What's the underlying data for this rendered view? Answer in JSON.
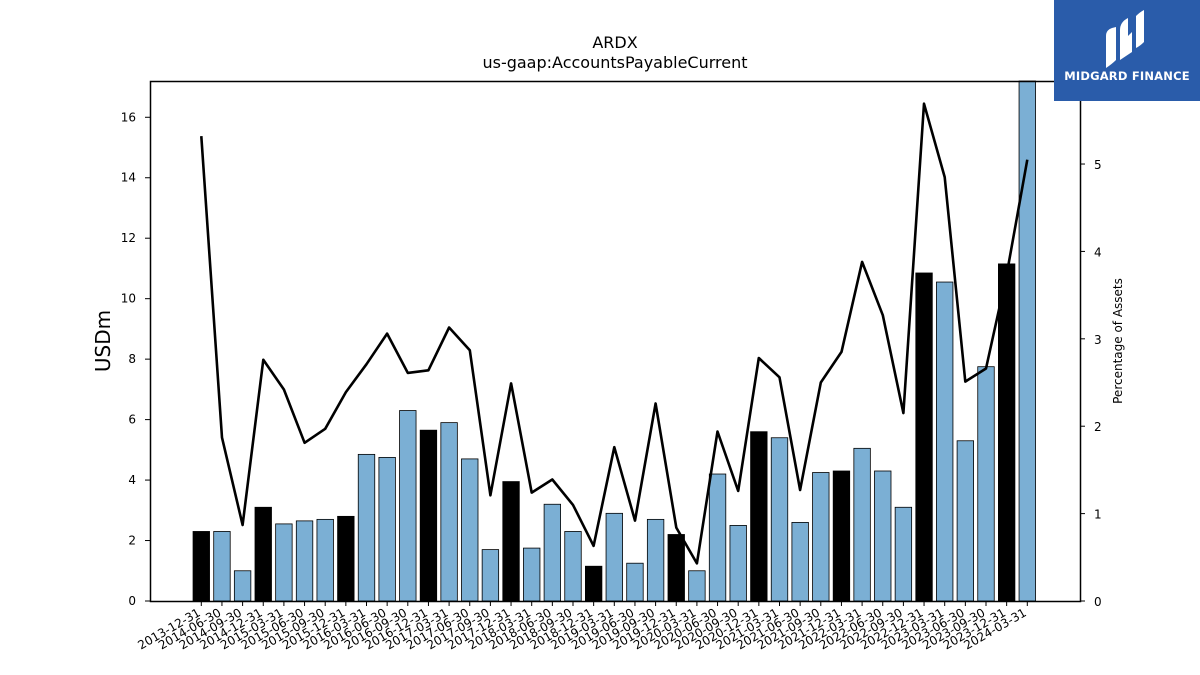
{
  "chart_data": {
    "type": "bar",
    "title": "ARDX",
    "subtitle": "us-gaap:AccountsPayableCurrent",
    "ylabel": "USDm",
    "y2label": "Percentage of Assets",
    "ylim": [
      0,
      17.2
    ],
    "y2lim": [
      0,
      5.95
    ],
    "yticks": [
      0,
      2,
      4,
      6,
      8,
      10,
      12,
      14,
      16
    ],
    "y2ticks": [
      0,
      1,
      2,
      3,
      4,
      5
    ],
    "bar_color_default": "#7bafd4",
    "bar_color_highlight": "#000000",
    "line_color": "#000000",
    "categories": [
      "2013-12-31",
      "2014-06-30",
      "2014-09-30",
      "2014-12-31",
      "2015-03-31",
      "2015-06-30",
      "2015-09-30",
      "2015-12-31",
      "2016-03-31",
      "2016-06-30",
      "2016-09-30",
      "2016-12-31",
      "2017-03-31",
      "2017-06-30",
      "2017-09-30",
      "2017-12-31",
      "2018-03-31",
      "2018-06-30",
      "2018-09-30",
      "2018-12-31",
      "2019-03-31",
      "2019-06-30",
      "2019-09-30",
      "2019-12-31",
      "2020-03-31",
      "2020-06-30",
      "2020-09-30",
      "2020-12-31",
      "2021-03-31",
      "2021-06-30",
      "2021-09-30",
      "2021-12-31",
      "2022-03-31",
      "2022-06-30",
      "2022-09-30",
      "2022-12-31",
      "2023-03-31",
      "2023-06-30",
      "2023-09-30",
      "2023-12-31",
      "2024-03-31"
    ],
    "series": [
      {
        "type": "bar",
        "values": [
          2.3,
          2.3,
          1.0,
          3.1,
          2.55,
          2.65,
          2.7,
          2.8,
          4.85,
          4.75,
          6.3,
          5.65,
          5.9,
          4.7,
          1.7,
          3.95,
          1.75,
          3.2,
          2.3,
          1.15,
          2.9,
          1.25,
          2.7,
          2.2,
          1.0,
          4.2,
          2.5,
          5.6,
          5.4,
          2.6,
          4.25,
          4.3,
          5.05,
          4.3,
          3.1,
          10.85,
          10.55,
          5.3,
          7.75,
          11.15,
          17.3
        ],
        "highlight": [
          true,
          false,
          false,
          true,
          false,
          false,
          false,
          true,
          false,
          false,
          false,
          true,
          false,
          false,
          false,
          true,
          false,
          false,
          false,
          true,
          false,
          false,
          false,
          true,
          false,
          false,
          false,
          true,
          false,
          false,
          false,
          true,
          false,
          false,
          false,
          true,
          false,
          false,
          false,
          true,
          false
        ]
      },
      {
        "type": "line",
        "axis": "right",
        "values": [
          5.32,
          1.87,
          0.87,
          2.76,
          2.42,
          1.81,
          1.97,
          2.39,
          2.71,
          3.06,
          2.61,
          2.64,
          3.13,
          2.87,
          1.21,
          2.49,
          1.24,
          1.39,
          1.1,
          0.63,
          1.76,
          0.92,
          2.26,
          0.84,
          0.43,
          1.94,
          1.26,
          2.78,
          2.56,
          1.27,
          2.5,
          2.85,
          3.88,
          3.27,
          2.15,
          5.69,
          4.85,
          2.51,
          2.66,
          3.73,
          5.05
        ]
      }
    ]
  },
  "logo": {
    "text": "MIDGARD FINANCE",
    "color": "#2a5caa"
  }
}
